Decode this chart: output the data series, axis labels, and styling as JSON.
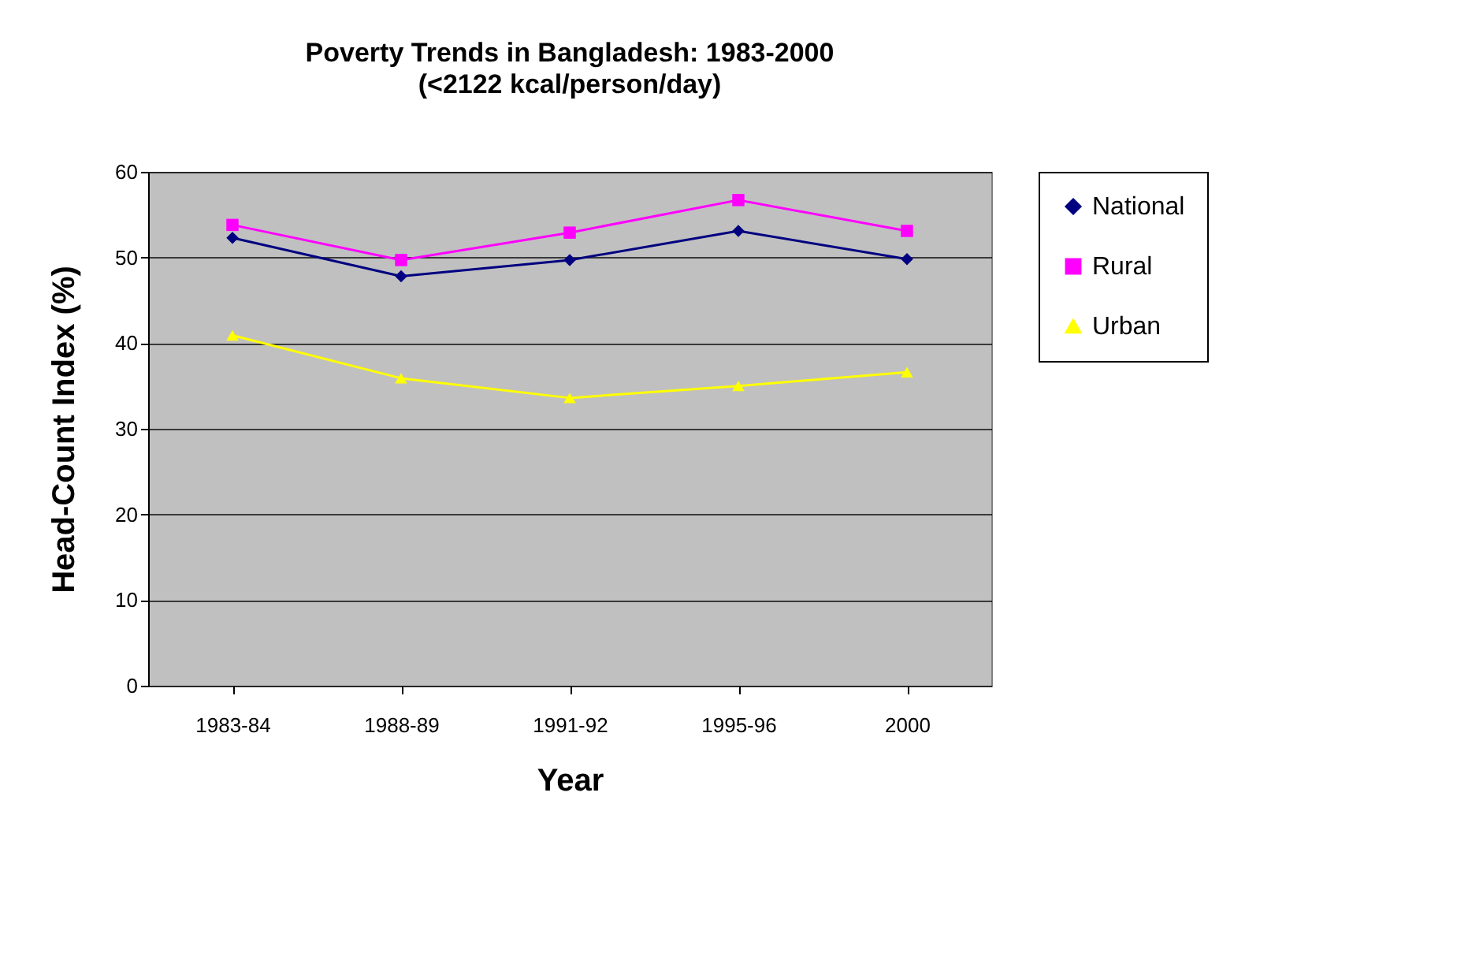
{
  "chart_data": {
    "type": "line",
    "title": "Poverty Trends in Bangladesh: 1983-2000",
    "subtitle": "(<2122 kcal/person/day)",
    "xlabel": "Year",
    "ylabel": "Head-Count Index (%)",
    "categories": [
      "1983-84",
      "1988-89",
      "1991-92",
      "1995-96",
      "2000"
    ],
    "series": [
      {
        "name": "National",
        "color": "#000080",
        "marker": "diamond",
        "values": [
          52.3,
          47.8,
          49.7,
          53.1,
          49.8
        ]
      },
      {
        "name": "Rural",
        "color": "#ff00ff",
        "marker": "square",
        "values": [
          53.8,
          49.7,
          52.9,
          56.7,
          53.1
        ]
      },
      {
        "name": "Urban",
        "color": "#ffff00",
        "marker": "triangle",
        "values": [
          40.9,
          35.9,
          33.6,
          35.0,
          36.6
        ]
      }
    ],
    "ylim": [
      0,
      60
    ],
    "yticks": [
      0,
      10,
      20,
      30,
      40,
      50,
      60
    ],
    "grid": "y",
    "legend": "right"
  }
}
